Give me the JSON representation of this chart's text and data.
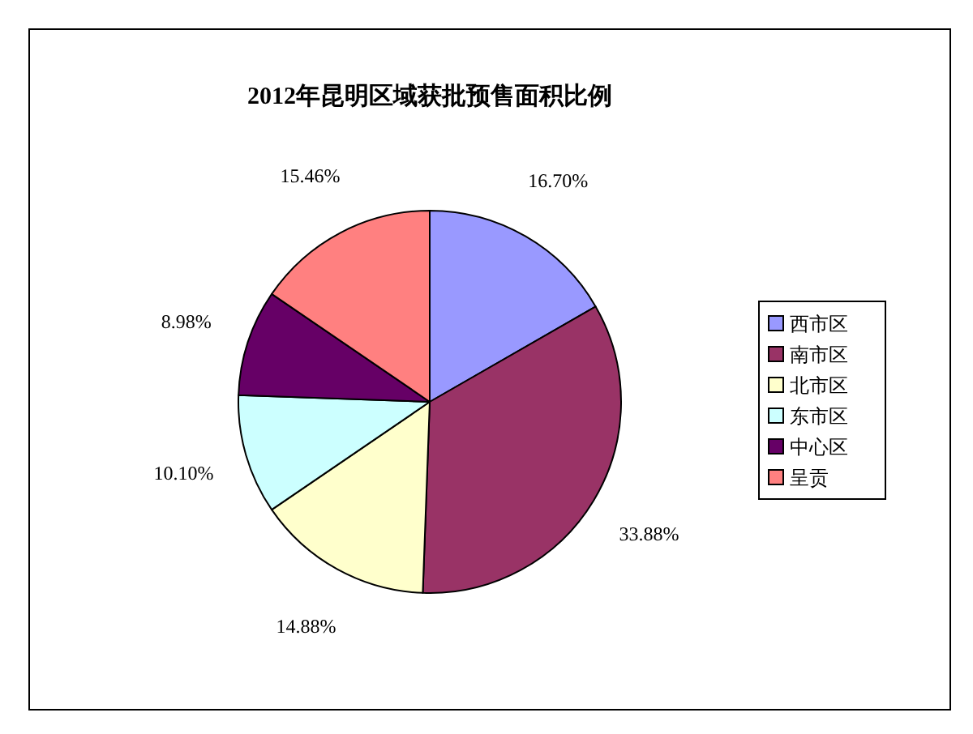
{
  "chart_data": {
    "type": "pie",
    "title": "2012年昆明区域获批预售面积比例",
    "categories": [
      "西市区",
      "南市区",
      "北市区",
      "东市区",
      "中心区",
      "呈贡"
    ],
    "values": [
      16.7,
      33.88,
      14.88,
      10.1,
      8.98,
      15.46
    ],
    "value_labels": [
      "16.70%",
      "33.88%",
      "14.88%",
      "10.10%",
      "8.98%",
      "15.46%"
    ],
    "colors": [
      "#9999ff",
      "#993366",
      "#ffffcc",
      "#ccffff",
      "#660066",
      "#ff8080"
    ],
    "legend": "right"
  }
}
